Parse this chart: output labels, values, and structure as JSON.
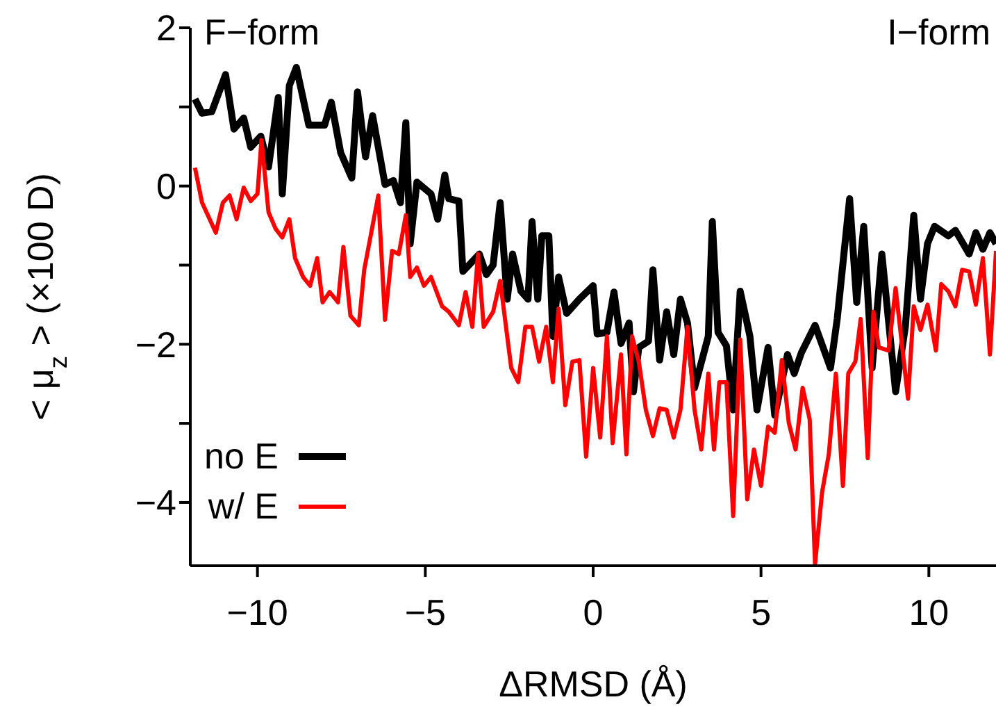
{
  "chart_data": {
    "type": "line",
    "xlabel": "ΔRMSD (Å)",
    "ylabel": "< μ$_{z}$ > (×100 D)",
    "annotations": [
      "F−form",
      "I−form"
    ],
    "xlim": [
      -12,
      12
    ],
    "xticks": [
      {
        "value": -10,
        "label": "−10"
      },
      {
        "value": -5,
        "label": "−5"
      },
      0,
      5,
      10
    ],
    "ylim": [
      -4.8,
      2
    ],
    "yticks": [
      {
        "value": -4,
        "label": "−4"
      },
      {
        "value": -3,
        "label": null
      },
      {
        "value": -2,
        "label": "−2"
      },
      {
        "value": -1,
        "label": null
      },
      0,
      {
        "value": 1,
        "label": null
      },
      2
    ],
    "grid": false,
    "legend": "bottom left",
    "line_style": "solid",
    "marker": "none",
    "series": [
      {
        "name": "no E",
        "color": "#000000",
        "x": [
          -11.86,
          -11.65,
          -11.36,
          -10.95,
          -10.7,
          -10.41,
          -10.2,
          -9.9,
          -9.67,
          -9.38,
          -9.26,
          -9.05,
          -8.84,
          -8.47,
          -8.0,
          -7.8,
          -7.52,
          -7.19,
          -7.02,
          -6.78,
          -6.57,
          -6.2,
          -5.95,
          -5.74,
          -5.58,
          -5.45,
          -5.25,
          -4.83,
          -4.63,
          -4.42,
          -4.3,
          -4.0,
          -3.88,
          -3.39,
          -3.18,
          -2.98,
          -2.77,
          -2.56,
          -2.4,
          -2.15,
          -1.94,
          -1.82,
          -1.65,
          -1.53,
          -1.32,
          -1.2,
          -1.03,
          -0.79,
          -0.41,
          0,
          0.12,
          0.41,
          0.62,
          0.83,
          1.07,
          1.2,
          1.36,
          1.65,
          1.78,
          1.98,
          2.19,
          2.4,
          2.6,
          2.81,
          3.02,
          3.43,
          3.55,
          3.72,
          3.97,
          4.17,
          4.38,
          4.67,
          4.88,
          5.21,
          5.41,
          5.79,
          5.99,
          6.2,
          6.61,
          7.07,
          7.27,
          7.64,
          7.85,
          8.06,
          8.31,
          8.6,
          9.01,
          9.3,
          9.55,
          9.75,
          9.96,
          10.17,
          10.58,
          10.79,
          11.2,
          11.4,
          11.61,
          11.82,
          12.0
        ],
        "values": [
          1.1,
          0.92,
          0.94,
          1.41,
          0.72,
          0.86,
          0.49,
          0.63,
          0.24,
          1.12,
          -0.1,
          1.27,
          1.5,
          0.77,
          0.77,
          1.06,
          0.42,
          0.1,
          1.19,
          0.37,
          0.89,
          0.02,
          0.07,
          -0.21,
          0.8,
          -0.73,
          0.05,
          -0.1,
          -0.42,
          0.14,
          -0.16,
          -0.19,
          -1.08,
          -0.86,
          -1.12,
          -1.0,
          -0.21,
          -1.43,
          -0.86,
          -1.33,
          -1.43,
          -0.45,
          -1.43,
          -0.63,
          -0.63,
          -1.9,
          -1.15,
          -1.61,
          -1.43,
          -1.26,
          -1.87,
          -1.85,
          -1.34,
          -1.99,
          -1.73,
          -2.6,
          -2.04,
          -1.96,
          -1.06,
          -2.2,
          -1.59,
          -2.13,
          -1.43,
          -1.73,
          -2.55,
          -1.9,
          -0.45,
          -1.85,
          -2.02,
          -2.83,
          -1.33,
          -1.9,
          -2.83,
          -2.04,
          -2.9,
          -2.13,
          -2.37,
          -2.11,
          -1.76,
          -2.3,
          -1.68,
          -0.16,
          -1.47,
          -0.51,
          -2.3,
          -0.86,
          -2.6,
          -1.78,
          -0.37,
          -1.43,
          -0.73,
          -0.51,
          -0.63,
          -0.56,
          -0.86,
          -0.59,
          -0.8,
          -0.59,
          -0.73
        ]
      },
      {
        "name": "w/ E",
        "color": "#ff0000",
        "x": [
          -11.86,
          -11.65,
          -11.24,
          -11.03,
          -10.83,
          -10.62,
          -10.41,
          -10.2,
          -10.0,
          -9.88,
          -9.67,
          -9.46,
          -9.26,
          -9.05,
          -8.88,
          -8.64,
          -8.43,
          -8.22,
          -8.06,
          -7.85,
          -7.6,
          -7.44,
          -7.23,
          -6.98,
          -6.82,
          -6.4,
          -6.2,
          -5.99,
          -5.79,
          -5.58,
          -5.45,
          -5.25,
          -5.04,
          -4.83,
          -4.5,
          -4.3,
          -4.0,
          -3.8,
          -3.6,
          -3.43,
          -3.26,
          -2.98,
          -2.77,
          -2.44,
          -2.23,
          -2.02,
          -1.82,
          -1.61,
          -1.4,
          -1.2,
          -1.03,
          -0.83,
          -0.62,
          -0.41,
          -0.21,
          0,
          0.21,
          0.41,
          0.58,
          0.83,
          0.99,
          1.16,
          1.36,
          1.57,
          1.78,
          1.98,
          2.19,
          2.4,
          2.6,
          2.81,
          3.02,
          3.22,
          3.43,
          3.6,
          3.76,
          3.97,
          4.17,
          4.38,
          4.59,
          4.79,
          5.0,
          5.21,
          5.41,
          5.62,
          5.83,
          6.03,
          6.24,
          6.45,
          6.61,
          6.82,
          7.02,
          7.23,
          7.44,
          7.6,
          7.81,
          7.97,
          8.18,
          8.35,
          8.51,
          8.8,
          9.01,
          9.38,
          9.55,
          9.75,
          9.96,
          10.21,
          10.37,
          10.58,
          10.79,
          10.99,
          11.2,
          11.4,
          11.61,
          11.82,
          12.0
        ],
        "values": [
          0.23,
          -0.21,
          -0.59,
          -0.21,
          -0.12,
          -0.42,
          -0.02,
          -0.19,
          -0.1,
          0.58,
          -0.33,
          -0.54,
          -0.65,
          -0.42,
          -0.91,
          -1.15,
          -1.26,
          -0.91,
          -1.47,
          -1.34,
          -1.47,
          -0.77,
          -1.64,
          -1.76,
          -1.06,
          -0.12,
          -1.69,
          -0.82,
          -0.86,
          -0.37,
          -1.15,
          -1.03,
          -1.26,
          -1.15,
          -1.52,
          -1.59,
          -1.76,
          -1.34,
          -1.78,
          -0.86,
          -1.78,
          -1.59,
          -1.2,
          -2.3,
          -2.48,
          -1.78,
          -1.78,
          -2.22,
          -1.78,
          -2.48,
          -1.55,
          -2.77,
          -2.22,
          -2.2,
          -3.42,
          -2.3,
          -3.18,
          -1.9,
          -3.25,
          -2.13,
          -3.39,
          -1.9,
          -2.22,
          -2.83,
          -3.16,
          -2.81,
          -2.83,
          -3.18,
          -2.83,
          -1.78,
          -2.83,
          -3.33,
          -2.37,
          -3.33,
          -2.48,
          -2.48,
          -4.17,
          -1.94,
          -3.96,
          -3.33,
          -3.79,
          -3.04,
          -3.12,
          -2.2,
          -3.0,
          -3.33,
          -2.55,
          -2.95,
          -4.78,
          -3.87,
          -3.39,
          -2.37,
          -3.79,
          -2.37,
          -2.22,
          -1.68,
          -3.44,
          -1.59,
          -2.04,
          -2.08,
          -1.29,
          -2.69,
          -1.52,
          -1.82,
          -1.5,
          -2.08,
          -1.24,
          -1.33,
          -1.52,
          -1.06,
          -1.08,
          -1.5,
          -0.91,
          -2.13,
          -0.82
        ]
      }
    ]
  }
}
